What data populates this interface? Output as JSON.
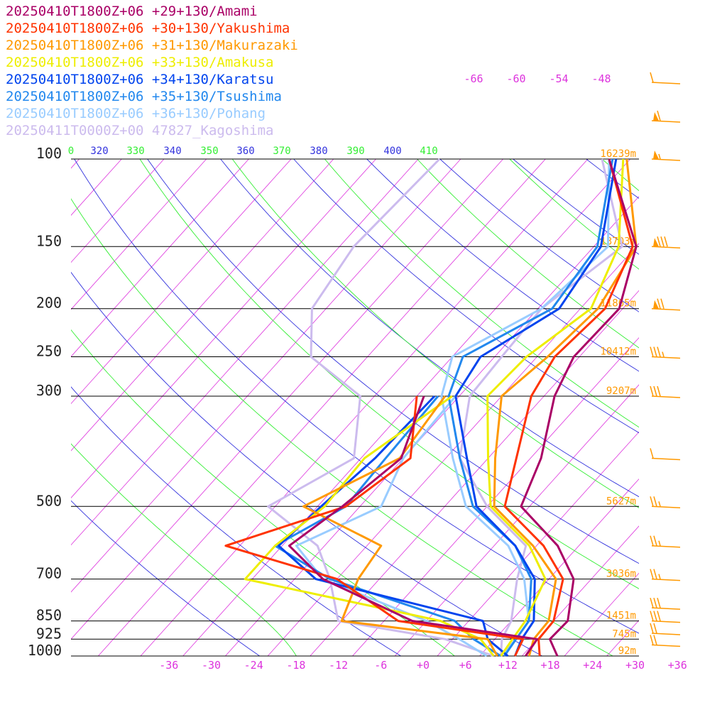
{
  "chart_data": {
    "type": "line",
    "chart_kind": "skew-T log-P sounding",
    "legend": [
      {
        "label": "20250410T1800Z+06 +29+130/Amami",
        "color": "#aa0066"
      },
      {
        "label": "20250410T1800Z+06 +30+130/Yakushima",
        "color": "#ff3300"
      },
      {
        "label": "20250410T1800Z+06 +31+130/Makurazaki",
        "color": "#ff9900"
      },
      {
        "label": "20250410T1800Z+06 +33+130/Amakusa",
        "color": "#eeee00"
      },
      {
        "label": "20250410T1800Z+06 +34+130/Karatsu",
        "color": "#0044ee"
      },
      {
        "label": "20250410T1800Z+06 +35+130/Tsushima",
        "color": "#2288ee"
      },
      {
        "label": "20250410T1800Z+06 +36+130/Pohang",
        "color": "#99ccff"
      },
      {
        "label": "20250411T0000Z+00 47827_Kagoshima",
        "color": "#ccbbee"
      }
    ],
    "pressure_levels": [
      100,
      150,
      200,
      250,
      300,
      500,
      700,
      850,
      925,
      1000
    ],
    "pressure_labels": [
      "100",
      "150",
      "200",
      "250",
      "300",
      "500",
      "700",
      "850",
      "925",
      "1000"
    ],
    "heights": [
      {
        "p": 100,
        "label": "16239m"
      },
      {
        "p": 150,
        "label": "13703m"
      },
      {
        "p": 200,
        "label": "11865m"
      },
      {
        "p": 250,
        "label": "10412m"
      },
      {
        "p": 300,
        "label": "9207m"
      },
      {
        "p": 500,
        "label": "5627m"
      },
      {
        "p": 700,
        "label": "3036m"
      },
      {
        "p": 850,
        "label": "1451m"
      },
      {
        "p": 925,
        "label": "745m"
      },
      {
        "p": 1000,
        "label": "92m"
      }
    ],
    "temperature_ticks": [
      "-36",
      "-30",
      "-24",
      "-18",
      "-12",
      "-6",
      "+0",
      "+6",
      "+12",
      "+18",
      "+24",
      "+30",
      "+36"
    ],
    "upper_temperature_labels": [
      "-66",
      "-60",
      "-54",
      "-48"
    ],
    "theta_labels": [
      "0",
      "320",
      "330",
      "340",
      "350",
      "360",
      "370",
      "380",
      "390",
      "400",
      "410"
    ],
    "x_range_degC": [
      -40,
      40
    ],
    "p_range_hPa": [
      100,
      1000
    ],
    "colors": {
      "isotherm": "#dd33dd",
      "theta": "#3333dd",
      "theta_e": "#33ee33",
      "isobar": "#000000",
      "height_label": "#ff9900",
      "wind_barb": "#ff9900",
      "frame_text": "#222222"
    },
    "series": [
      {
        "name": "Amami",
        "color": "#aa0066",
        "temperature": [
          [
            1000,
            19.0
          ],
          [
            925,
            15.8
          ],
          [
            850,
            16.0
          ],
          [
            700,
            11.5
          ],
          [
            600,
            5.0
          ],
          [
            500,
            -5.2
          ],
          [
            400,
            -8.5
          ],
          [
            300,
            -14.5
          ],
          [
            250,
            -16.8
          ],
          [
            200,
            -16.5
          ],
          [
            150,
            -22.0
          ],
          [
            100,
            -37.0
          ]
        ],
        "dewpoint": [
          [
            1000,
            14.5
          ],
          [
            925,
            14.0
          ],
          [
            850,
            -6.0
          ],
          [
            700,
            -24.0
          ],
          [
            600,
            -33.0
          ],
          [
            500,
            -30.5
          ],
          [
            400,
            -28.3
          ],
          [
            300,
            -33.0
          ]
        ]
      },
      {
        "name": "Yakushima",
        "color": "#ff3300",
        "temperature": [
          [
            1000,
            16.5
          ],
          [
            925,
            14.2
          ],
          [
            850,
            14.0
          ],
          [
            700,
            10.0
          ],
          [
            600,
            3.0
          ],
          [
            500,
            -7.5
          ],
          [
            400,
            -12.0
          ],
          [
            300,
            -17.8
          ],
          [
            250,
            -19.5
          ],
          [
            200,
            -18.5
          ],
          [
            150,
            -22.5
          ],
          [
            100,
            -37.0
          ]
        ],
        "dewpoint": [
          [
            1000,
            13.0
          ],
          [
            925,
            12.0
          ],
          [
            850,
            -8.0
          ],
          [
            700,
            -22.0
          ],
          [
            600,
            -42.0
          ],
          [
            500,
            -30.0
          ],
          [
            400,
            -27.0
          ],
          [
            300,
            -34.0
          ]
        ]
      },
      {
        "name": "Makurazaki",
        "color": "#ff9900",
        "temperature": [
          [
            1000,
            15.0
          ],
          [
            925,
            13.5
          ],
          [
            850,
            13.3
          ],
          [
            700,
            9.0
          ],
          [
            600,
            1.5
          ],
          [
            500,
            -9.0
          ],
          [
            400,
            -15.0
          ],
          [
            300,
            -22.0
          ],
          [
            250,
            -20.5
          ],
          [
            200,
            -19.5
          ],
          [
            150,
            -22.0
          ],
          [
            100,
            -34.5
          ]
        ],
        "dewpoint": [
          [
            1000,
            10.5
          ],
          [
            925,
            7.0
          ],
          [
            850,
            -16.0
          ],
          [
            700,
            -19.0
          ],
          [
            600,
            -20.0
          ],
          [
            500,
            -36.0
          ],
          [
            400,
            -28.5
          ],
          [
            300,
            -30.0
          ]
        ]
      },
      {
        "name": "Amakusa",
        "color": "#eeee00",
        "temperature": [
          [
            1000,
            11.0
          ],
          [
            925,
            10.5
          ],
          [
            850,
            10.0
          ],
          [
            700,
            7.5
          ],
          [
            600,
            1.0
          ],
          [
            500,
            -9.5
          ],
          [
            400,
            -16.0
          ],
          [
            300,
            -24.0
          ],
          [
            250,
            -23.5
          ],
          [
            200,
            -20.5
          ],
          [
            150,
            -24.5
          ],
          [
            100,
            -35.0
          ]
        ],
        "dewpoint": [
          [
            1000,
            10.0
          ],
          [
            925,
            6.0
          ],
          [
            850,
            -2.0
          ],
          [
            700,
            -35.0
          ],
          [
            600,
            -35.0
          ],
          [
            500,
            -33.0
          ],
          [
            400,
            -33.5
          ],
          [
            300,
            -29.0
          ]
        ]
      },
      {
        "name": "Karatsu",
        "color": "#0044ee",
        "temperature": [
          [
            1000,
            13.0
          ],
          [
            925,
            11.8
          ],
          [
            850,
            11.2
          ],
          [
            700,
            6.0
          ],
          [
            600,
            -1.0
          ],
          [
            500,
            -11.5
          ],
          [
            400,
            -19.0
          ],
          [
            300,
            -28.5
          ],
          [
            250,
            -30.0
          ],
          [
            200,
            -25.0
          ],
          [
            150,
            -27.0
          ],
          [
            100,
            -36.0
          ]
        ],
        "dewpoint": [
          [
            1000,
            12.0
          ],
          [
            925,
            7.0
          ],
          [
            850,
            4.0
          ],
          [
            700,
            -25.0
          ],
          [
            600,
            -34.5
          ],
          [
            500,
            -33.5
          ],
          [
            400,
            -32.0
          ],
          [
            300,
            -31.5
          ]
        ]
      },
      {
        "name": "Tsushima",
        "color": "#2288ee",
        "temperature": [
          [
            1000,
            11.5
          ],
          [
            925,
            11.0
          ],
          [
            850,
            10.5
          ],
          [
            700,
            5.5
          ],
          [
            600,
            -1.0
          ],
          [
            500,
            -12.0
          ],
          [
            400,
            -20.0
          ],
          [
            300,
            -29.5
          ],
          [
            250,
            -32.5
          ],
          [
            200,
            -26.0
          ],
          [
            150,
            -27.5
          ],
          [
            100,
            -36.5
          ]
        ],
        "dewpoint": [
          [
            1000,
            11.0
          ],
          [
            925,
            5.0
          ],
          [
            850,
            0.0
          ],
          [
            700,
            -23.0
          ],
          [
            600,
            -35.0
          ],
          [
            500,
            -30.0
          ],
          [
            400,
            -30.5
          ],
          [
            300,
            -31.0
          ]
        ]
      },
      {
        "name": "Pohang",
        "color": "#99ccff",
        "temperature": [
          [
            1000,
            11.0
          ],
          [
            925,
            11.0
          ],
          [
            850,
            10.5
          ],
          [
            700,
            4.5
          ],
          [
            600,
            -2.0
          ],
          [
            500,
            -13.0
          ],
          [
            400,
            -21.0
          ],
          [
            300,
            -30.5
          ],
          [
            250,
            -34.0
          ],
          [
            200,
            -27.5
          ],
          [
            150,
            -26.0
          ],
          [
            100,
            -37.0
          ]
        ],
        "dewpoint": [
          [
            1000,
            9.0
          ],
          [
            925,
            3.0
          ],
          [
            850,
            -4.0
          ],
          [
            700,
            -24.0
          ],
          [
            600,
            -32.0
          ],
          [
            500,
            -25.0
          ],
          [
            400,
            -28.0
          ],
          [
            300,
            -28.5
          ]
        ]
      },
      {
        "name": "Kagoshima",
        "color": "#ccbbee",
        "temperature": [
          [
            1000,
            11.0
          ],
          [
            925,
            9.0
          ],
          [
            850,
            8.0
          ],
          [
            700,
            3.5
          ],
          [
            600,
            0.5
          ],
          [
            500,
            -10.0
          ],
          [
            400,
            -20.0
          ],
          [
            300,
            -26.5
          ],
          [
            250,
            -27.0
          ],
          [
            200,
            -27.5
          ],
          [
            150,
            -24.0
          ],
          [
            100,
            -38.0
          ]
        ],
        "dewpoint": [
          [
            1000,
            10.0
          ],
          [
            925,
            1.0
          ],
          [
            850,
            -16.5
          ],
          [
            700,
            -23.0
          ],
          [
            600,
            -29.0
          ],
          [
            500,
            -41.0
          ],
          [
            400,
            -35.0
          ],
          [
            300,
            -42.0
          ],
          [
            250,
            -54.0
          ],
          [
            200,
            -60.0
          ],
          [
            150,
            -62.0
          ],
          [
            100,
            -61.0
          ]
        ]
      }
    ],
    "wind_barbs": [
      {
        "p": 70,
        "speed_kt": 10
      },
      {
        "p": 85,
        "speed_kt": 60
      },
      {
        "p": 100,
        "speed_kt": 55
      },
      {
        "p": 150,
        "speed_kt": 80
      },
      {
        "p": 200,
        "speed_kt": 70
      },
      {
        "p": 250,
        "speed_kt": 35
      },
      {
        "p": 300,
        "speed_kt": 30
      },
      {
        "p": 400,
        "speed_kt": 10
      },
      {
        "p": 500,
        "speed_kt": 25
      },
      {
        "p": 600,
        "speed_kt": 25
      },
      {
        "p": 700,
        "speed_kt": 25
      },
      {
        "p": 800,
        "speed_kt": 30
      },
      {
        "p": 850,
        "speed_kt": 30
      },
      {
        "p": 900,
        "speed_kt": 20
      },
      {
        "p": 950,
        "speed_kt": 20
      }
    ]
  }
}
